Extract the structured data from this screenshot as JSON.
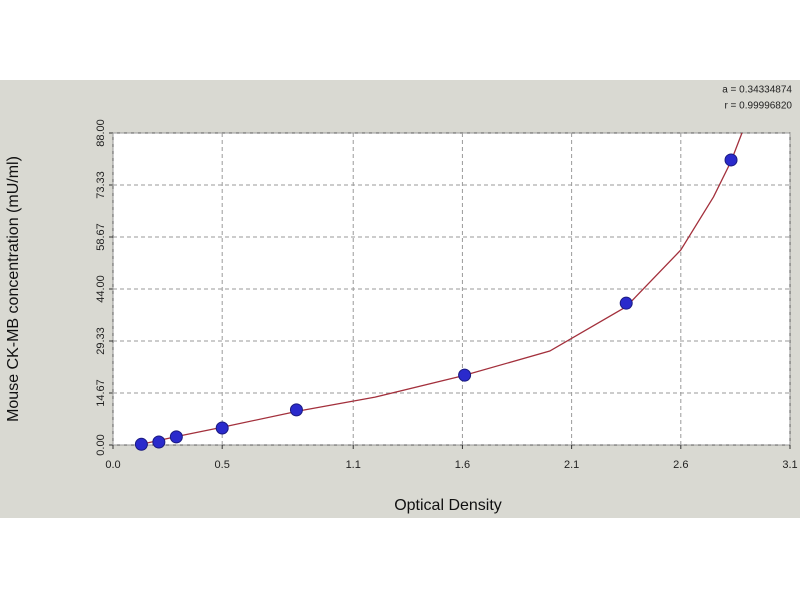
{
  "chart_data": {
    "type": "scatter",
    "x_label": "Optical Density",
    "y_label": "Mouse CK-MB concentration (mU/ml)",
    "annotations": [
      "a = 0.34334874",
      "r = 0.99996820"
    ],
    "x": [
      0.13,
      0.21,
      0.29,
      0.5,
      0.84,
      1.61,
      2.35,
      2.83
    ],
    "values": [
      0.2,
      0.85,
      2.3,
      4.8,
      9.9,
      19.7,
      40.0,
      80.4
    ],
    "color": "#2a2acc",
    "curve": {
      "x": [
        0.13,
        0.3,
        0.5,
        0.85,
        1.2,
        1.6,
        2.0,
        2.35,
        2.6,
        2.75,
        2.83,
        2.88
      ],
      "values": [
        0.2,
        2.5,
        5.0,
        9.6,
        13.5,
        19.5,
        26.5,
        39.0,
        55.0,
        70.0,
        80.0,
        88.0
      ],
      "color": "#a3303c"
    },
    "xlim": [
      0,
      3.1
    ],
    "ylim": [
      0,
      88
    ],
    "xticks": [
      {
        "value": 0,
        "label": "0.0"
      },
      0.5,
      1.1,
      1.6,
      2.1,
      2.6,
      3.1
    ],
    "yticks": [
      {
        "value": 0,
        "label": "0.00"
      },
      14.67,
      29.33,
      {
        "value": 44,
        "label": "44.00"
      },
      58.67,
      73.33,
      {
        "value": 88,
        "label": "88.00"
      }
    ],
    "grid": true
  }
}
